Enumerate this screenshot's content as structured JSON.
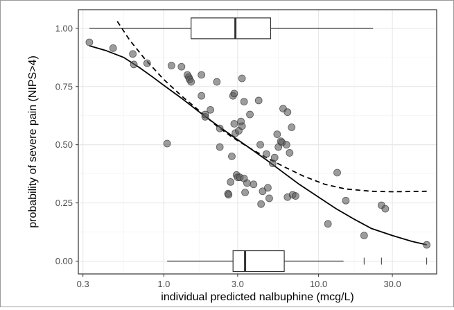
{
  "chart_data": {
    "type": "scatter",
    "x_scale": "log10",
    "xlabel": "individual predicted nalbuphine (mcg/L)",
    "ylabel": "probability of severe pain (NIPS>4)",
    "xlim": [
      0.28,
      58
    ],
    "ylim": [
      -0.055,
      1.08
    ],
    "x_ticks": [
      0.3,
      1.0,
      3.0,
      10.0,
      30.0
    ],
    "x_tick_labels": [
      "0.3",
      "1.0",
      "3.0",
      "10.0",
      "30.0"
    ],
    "x_minor_ticks": [
      0.55,
      1.7,
      5.5,
      17
    ],
    "y_ticks": [
      0.0,
      0.25,
      0.5,
      0.75,
      1.0
    ],
    "y_tick_labels": [
      "0.00",
      "0.25",
      "0.50",
      "0.75",
      "1.00"
    ],
    "y_minor_ticks": [
      0.125,
      0.375,
      0.625,
      0.875
    ],
    "grid": true,
    "points": [
      [
        0.33,
        0.94
      ],
      [
        0.47,
        0.915
      ],
      [
        0.63,
        0.89
      ],
      [
        0.64,
        0.845
      ],
      [
        0.78,
        0.85
      ],
      [
        1.05,
        0.505
      ],
      [
        1.12,
        0.84
      ],
      [
        1.3,
        0.835
      ],
      [
        1.42,
        0.8
      ],
      [
        1.45,
        0.79
      ],
      [
        1.47,
        0.78
      ],
      [
        1.5,
        0.77
      ],
      [
        1.75,
        0.8
      ],
      [
        1.75,
        0.71
      ],
      [
        1.85,
        0.62
      ],
      [
        1.85,
        0.63
      ],
      [
        2.0,
        0.65
      ],
      [
        2.2,
        0.77
      ],
      [
        2.3,
        0.57
      ],
      [
        2.3,
        0.49
      ],
      [
        2.6,
        0.29
      ],
      [
        2.62,
        0.285
      ],
      [
        2.7,
        0.34
      ],
      [
        2.75,
        0.45
      ],
      [
        2.8,
        0.71
      ],
      [
        2.85,
        0.72
      ],
      [
        2.85,
        0.59
      ],
      [
        2.9,
        0.55
      ],
      [
        2.95,
        0.37
      ],
      [
        3.0,
        0.36
      ],
      [
        3.05,
        0.56
      ],
      [
        3.1,
        0.36
      ],
      [
        3.15,
        0.6
      ],
      [
        3.2,
        0.785
      ],
      [
        3.2,
        0.58
      ],
      [
        3.3,
        0.685
      ],
      [
        3.3,
        0.355
      ],
      [
        3.35,
        0.295
      ],
      [
        3.45,
        0.335
      ],
      [
        3.6,
        0.63
      ],
      [
        3.8,
        0.33
      ],
      [
        4.1,
        0.69
      ],
      [
        4.2,
        0.5
      ],
      [
        4.25,
        0.245
      ],
      [
        4.35,
        0.3
      ],
      [
        4.6,
        0.46
      ],
      [
        4.7,
        0.315
      ],
      [
        4.8,
        0.27
      ],
      [
        5.05,
        0.42
      ],
      [
        5.2,
        0.445
      ],
      [
        5.4,
        0.545
      ],
      [
        5.5,
        0.49
      ],
      [
        5.7,
        0.515
      ],
      [
        5.8,
        0.51
      ],
      [
        5.9,
        0.655
      ],
      [
        6.2,
        0.5
      ],
      [
        6.3,
        0.64
      ],
      [
        6.3,
        0.275
      ],
      [
        6.5,
        0.465
      ],
      [
        6.7,
        0.575
      ],
      [
        6.8,
        0.285
      ],
      [
        7.1,
        0.28
      ],
      [
        11.5,
        0.16
      ],
      [
        13.2,
        0.38
      ],
      [
        15.0,
        0.26
      ],
      [
        19.7,
        0.11
      ],
      [
        25.5,
        0.24
      ],
      [
        27.0,
        0.225
      ],
      [
        50.0,
        0.07
      ]
    ],
    "solid_curve": [
      [
        0.33,
        0.925
      ],
      [
        0.42,
        0.905
      ],
      [
        0.55,
        0.875
      ],
      [
        0.7,
        0.83
      ],
      [
        0.85,
        0.79
      ],
      [
        1.0,
        0.755
      ],
      [
        1.3,
        0.7
      ],
      [
        1.7,
        0.64
      ],
      [
        2.2,
        0.585
      ],
      [
        2.8,
        0.535
      ],
      [
        3.6,
        0.485
      ],
      [
        4.6,
        0.435
      ],
      [
        5.8,
        0.385
      ],
      [
        7.5,
        0.33
      ],
      [
        10.0,
        0.275
      ],
      [
        13.0,
        0.225
      ],
      [
        17.0,
        0.18
      ],
      [
        22.0,
        0.14
      ],
      [
        30.0,
        0.11
      ],
      [
        40.0,
        0.085
      ],
      [
        50.0,
        0.07
      ]
    ],
    "dashed_curve": [
      [
        0.5,
        1.03
      ],
      [
        0.6,
        0.95
      ],
      [
        0.75,
        0.87
      ],
      [
        1.0,
        0.78
      ],
      [
        1.3,
        0.71
      ],
      [
        1.7,
        0.645
      ],
      [
        2.2,
        0.58
      ],
      [
        2.8,
        0.53
      ],
      [
        3.6,
        0.485
      ],
      [
        4.6,
        0.445
      ],
      [
        6.0,
        0.405
      ],
      [
        8.0,
        0.365
      ],
      [
        11.0,
        0.33
      ],
      [
        15.0,
        0.31
      ],
      [
        22.0,
        0.3
      ],
      [
        30.0,
        0.298
      ],
      [
        50.0,
        0.3
      ]
    ],
    "boxplot_top": {
      "y": 1.0,
      "whisker_low": 0.33,
      "q1": 1.5,
      "median": 2.9,
      "q3": 4.9,
      "whisker_high": 22.5
    },
    "boxplot_bottom": {
      "y": 0.0,
      "whisker_low": 1.05,
      "q1": 2.8,
      "median": 3.35,
      "q3": 6.0,
      "whisker_high": 14.5,
      "outliers": [
        19.7,
        25.5,
        50.0
      ]
    }
  },
  "colors": {
    "panel_background": "#ffffff",
    "grid_major": "#e6e6e6",
    "grid_minor": "#f2f2f2",
    "panel_border": "#333333",
    "point_fill": "#5a5a5a",
    "point_stroke": "#2b2b2b",
    "curve": "#000000",
    "box": "#333333"
  }
}
